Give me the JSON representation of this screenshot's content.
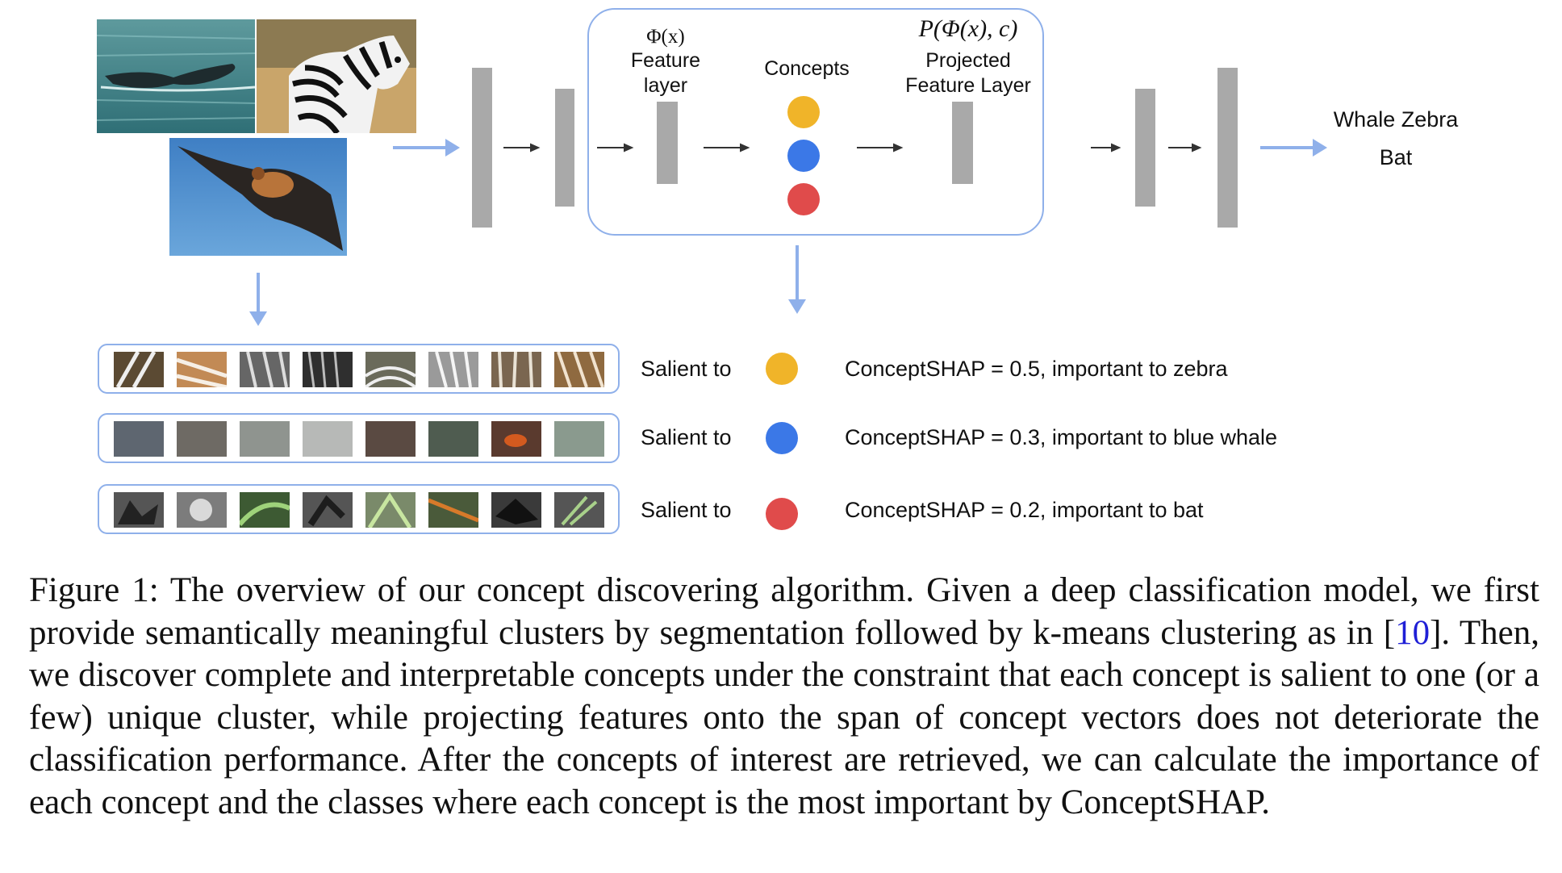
{
  "figure": {
    "input_images": [
      {
        "name": "whale-tail-photo"
      },
      {
        "name": "zebra-photo"
      },
      {
        "name": "bat-photo"
      }
    ],
    "phi_math": "Φ(x)",
    "feature_layer_label": [
      "Feature",
      "layer"
    ],
    "concepts_label": "Concepts",
    "projection_math": "P(Φ(x), c)",
    "projected_layer_label": [
      "Projected",
      "Feature Layer"
    ],
    "outputs_label": [
      "Whale Zebra",
      "Bat"
    ],
    "concept_colors": {
      "yellow": "#f0b429",
      "blue": "#3b78e7",
      "red": "#e04b4b"
    },
    "arrow_color": "#8fb0ea",
    "rows": [
      {
        "salient_label": "Salient to",
        "dot_color": "#f0b429",
        "result": "ConceptSHAP = 0.5, important to zebra"
      },
      {
        "salient_label": "Salient to",
        "dot_color": "#3b78e7",
        "result": "ConceptSHAP = 0.3, important to blue whale"
      },
      {
        "salient_label": "Salient to",
        "dot_color": "#e04b4b",
        "result": "ConceptSHAP = 0.2, important to bat"
      }
    ]
  },
  "caption": {
    "prefix": "Figure 1: The overview of our concept discovering algorithm. Given a deep classification model, we first provide semantically meaningful clusters by segmentation followed by k-means clustering as in [",
    "citation": "10",
    "suffix": "]. Then, we discover complete and interpretable concepts under the constraint that each concept is salient to one (or a few) unique cluster, while projecting features onto the span of concept vectors does not deteriorate the classification performance. After the concepts of interest are retrieved, we can calculate the importance of each concept and the classes where each concept is the most important by ConceptSHAP."
  }
}
